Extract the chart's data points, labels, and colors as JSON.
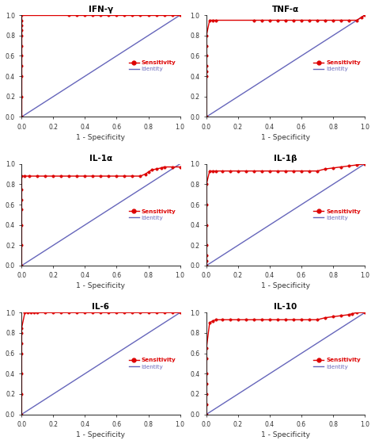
{
  "titles": [
    "IFN-γ",
    "TNF-α",
    "IL-1α",
    "IL-1β",
    "IL-6",
    "IL-10"
  ],
  "background_color": "#ffffff",
  "roc_color": "#dd0000",
  "identity_color": "#6666bb",
  "tick_color": "#333333",
  "xlabel": "1 - Specificity",
  "legend_sensitivity": "Sensitivity",
  "legend_identity": "Identity",
  "curves": {
    "IFN-γ": {
      "x": [
        0.0,
        0.0,
        0.0,
        0.0,
        0.0,
        0.0,
        0.0,
        0.0,
        0.0,
        0.0,
        0.0,
        0.3,
        0.35,
        0.4,
        0.45,
        0.5,
        0.55,
        0.6,
        0.65,
        0.7,
        0.75,
        0.8,
        0.85,
        0.9,
        0.95,
        1.0
      ],
      "y": [
        0.0,
        0.2,
        0.4,
        0.5,
        0.6,
        0.7,
        0.8,
        0.85,
        0.9,
        0.95,
        1.0,
        1.0,
        1.0,
        1.0,
        1.0,
        1.0,
        1.0,
        1.0,
        1.0,
        1.0,
        1.0,
        1.0,
        1.0,
        1.0,
        1.0,
        1.0
      ]
    },
    "TNF-α": {
      "x": [
        0.0,
        0.0,
        0.0,
        0.0,
        0.0,
        0.0,
        0.0,
        0.02,
        0.04,
        0.06,
        0.3,
        0.35,
        0.4,
        0.45,
        0.5,
        0.55,
        0.6,
        0.65,
        0.7,
        0.75,
        0.8,
        0.85,
        0.9,
        0.95,
        0.98,
        1.0
      ],
      "y": [
        0.0,
        0.4,
        0.45,
        0.5,
        0.6,
        0.7,
        0.8,
        0.95,
        0.95,
        0.95,
        0.95,
        0.95,
        0.95,
        0.95,
        0.95,
        0.95,
        0.95,
        0.95,
        0.95,
        0.95,
        0.95,
        0.95,
        0.95,
        0.95,
        0.98,
        1.0
      ]
    },
    "IL-1α": {
      "x": [
        0.0,
        0.0,
        0.0,
        0.0,
        0.0,
        0.0,
        0.0,
        0.02,
        0.05,
        0.1,
        0.15,
        0.2,
        0.25,
        0.3,
        0.35,
        0.4,
        0.45,
        0.5,
        0.55,
        0.6,
        0.65,
        0.7,
        0.75,
        0.78,
        0.8,
        0.82,
        0.85,
        0.88,
        0.9,
        0.95,
        1.0
      ],
      "y": [
        0.0,
        0.2,
        0.4,
        0.55,
        0.65,
        0.75,
        0.88,
        0.88,
        0.88,
        0.88,
        0.88,
        0.88,
        0.88,
        0.88,
        0.88,
        0.88,
        0.88,
        0.88,
        0.88,
        0.88,
        0.88,
        0.88,
        0.88,
        0.9,
        0.92,
        0.94,
        0.95,
        0.96,
        0.97,
        0.97,
        0.97
      ]
    },
    "IL-1β": {
      "x": [
        0.0,
        0.0,
        0.0,
        0.0,
        0.0,
        0.0,
        0.0,
        0.02,
        0.04,
        0.06,
        0.1,
        0.15,
        0.2,
        0.25,
        0.3,
        0.35,
        0.4,
        0.45,
        0.5,
        0.55,
        0.6,
        0.65,
        0.7,
        0.75,
        0.8,
        0.85,
        0.9,
        0.95,
        1.0
      ],
      "y": [
        0.0,
        0.05,
        0.1,
        0.2,
        0.4,
        0.6,
        0.8,
        0.93,
        0.93,
        0.93,
        0.93,
        0.93,
        0.93,
        0.93,
        0.93,
        0.93,
        0.93,
        0.93,
        0.93,
        0.93,
        0.93,
        0.93,
        0.93,
        0.95,
        0.96,
        0.97,
        0.98,
        0.99,
        1.0
      ]
    },
    "IL-6": {
      "x": [
        0.0,
        0.0,
        0.0,
        0.0,
        0.0,
        0.0,
        0.0,
        0.02,
        0.04,
        0.06,
        0.08,
        0.1,
        0.15,
        0.2,
        0.25,
        0.3,
        0.35,
        0.4,
        0.45,
        0.5,
        0.55,
        0.6,
        0.65,
        0.7,
        0.75,
        0.8,
        0.85,
        0.9,
        0.95,
        1.0
      ],
      "y": [
        0.0,
        0.2,
        0.4,
        0.6,
        0.7,
        0.8,
        0.85,
        1.0,
        1.0,
        1.0,
        1.0,
        1.0,
        1.0,
        1.0,
        1.0,
        1.0,
        1.0,
        1.0,
        1.0,
        1.0,
        1.0,
        1.0,
        1.0,
        1.0,
        1.0,
        1.0,
        1.0,
        1.0,
        1.0,
        1.0
      ]
    },
    "IL-10": {
      "x": [
        0.0,
        0.0,
        0.0,
        0.0,
        0.0,
        0.0,
        0.0,
        0.02,
        0.04,
        0.06,
        0.1,
        0.15,
        0.2,
        0.25,
        0.3,
        0.35,
        0.4,
        0.45,
        0.5,
        0.55,
        0.6,
        0.65,
        0.7,
        0.75,
        0.8,
        0.85,
        0.9,
        0.92,
        0.95,
        1.0
      ],
      "y": [
        0.0,
        0.1,
        0.2,
        0.3,
        0.4,
        0.55,
        0.65,
        0.9,
        0.92,
        0.93,
        0.93,
        0.93,
        0.93,
        0.93,
        0.93,
        0.93,
        0.93,
        0.93,
        0.93,
        0.93,
        0.93,
        0.93,
        0.93,
        0.95,
        0.96,
        0.97,
        0.98,
        0.99,
        1.0,
        1.0
      ]
    }
  }
}
